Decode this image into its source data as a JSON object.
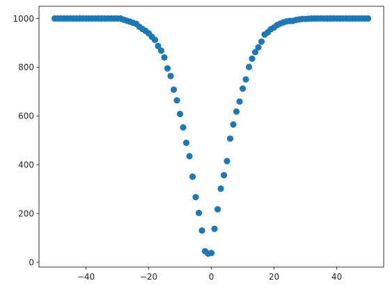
{
  "chart_data": {
    "type": "scatter",
    "title": "",
    "xlabel": "",
    "ylabel": "",
    "xlim": [
      -55,
      55
    ],
    "ylim": [
      -20,
      1050
    ],
    "xticks": [
      -40,
      -20,
      0,
      20,
      40
    ],
    "yticks": [
      0,
      200,
      400,
      600,
      800,
      1000
    ],
    "grid": false,
    "legend": "none",
    "marker_color": "#1f77b4",
    "series": [
      {
        "x": [
          -50,
          -49,
          -48,
          -47,
          -46,
          -45,
          -44,
          -43,
          -42,
          -41,
          -40,
          -39,
          -38,
          -37,
          -36,
          -35,
          -34,
          -33,
          -32,
          -31,
          -30,
          -29,
          -28,
          -27,
          -26,
          -25,
          -24,
          -23,
          -22,
          -21,
          -20,
          -19,
          -18,
          -17,
          -16,
          -15,
          -14,
          -13,
          -12,
          -11,
          -10,
          -9,
          -8,
          -7,
          -6,
          -5,
          -4,
          -3,
          -2,
          -1,
          0,
          1,
          2,
          3,
          4,
          5,
          6,
          7,
          8,
          9,
          10,
          11,
          12,
          13,
          14,
          15,
          16,
          17,
          18,
          19,
          20,
          21,
          22,
          23,
          24,
          25,
          26,
          27,
          28,
          29,
          30,
          31,
          32,
          33,
          34,
          35,
          36,
          37,
          38,
          39,
          40,
          41,
          42,
          43,
          44,
          45,
          46,
          47,
          48,
          49,
          50
        ],
        "y": [
          1000,
          1000,
          1000,
          1000,
          1000,
          1000,
          1000,
          1000,
          1000,
          1000,
          1000,
          1000,
          1000,
          1000,
          1000,
          1000,
          1000,
          1000,
          1000,
          1000,
          1000,
          1000,
          995,
          991,
          987,
          982,
          978,
          966,
          957,
          949,
          939,
          925,
          912,
          887,
          868,
          840,
          795,
          764,
          708,
          664,
          608,
          553,
          490,
          435,
          351,
          267,
          202,
          130,
          45,
          35,
          38,
          137,
          217,
          302,
          357,
          415,
          507,
          565,
          618,
          659,
          712,
          750,
          801,
          835,
          862,
          882,
          905,
          934,
          943,
          956,
          963,
          973,
          979,
          984,
          988,
          990,
          990,
          994,
          996,
          998,
          998,
          999,
          1000,
          1000,
          1000,
          1000,
          1000,
          1000,
          1000,
          1000,
          1000,
          1000,
          1000,
          1000,
          1000,
          1000,
          1000,
          1000,
          1000,
          1000,
          1000
        ]
      }
    ]
  }
}
